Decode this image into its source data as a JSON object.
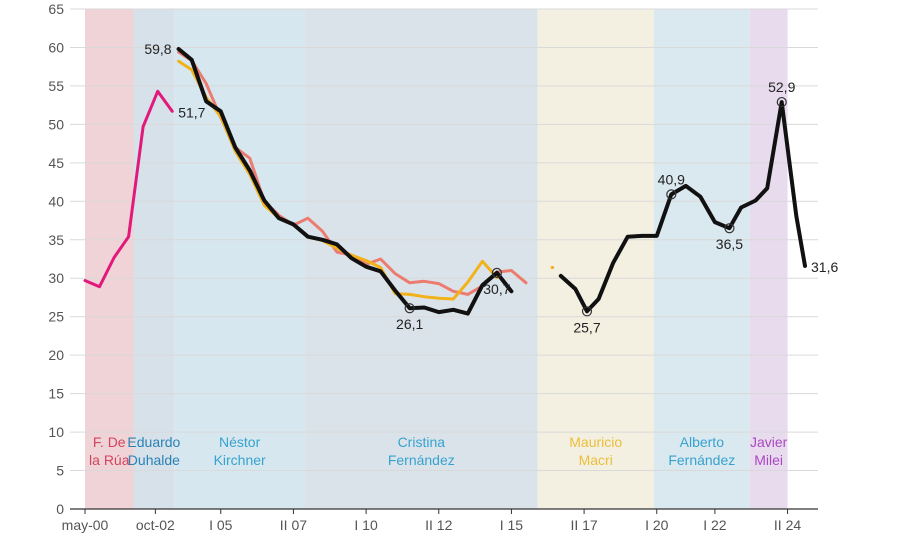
{
  "chart_data": {
    "type": "line",
    "title": "",
    "xlabel": "",
    "ylabel": "",
    "ylim": [
      0,
      65
    ],
    "yticks": [
      0,
      5,
      10,
      15,
      20,
      25,
      30,
      35,
      40,
      45,
      50,
      55,
      60,
      65
    ],
    "xlim": [
      2000.33,
      2025.1
    ],
    "grid": true,
    "xtick_labels": [
      {
        "label": "may-00",
        "x": 2000.33
      },
      {
        "label": "oct-02",
        "x": 2002.75
      },
      {
        "label": "I 05",
        "x": 2005.0
      },
      {
        "label": "II 07",
        "x": 2007.5
      },
      {
        "label": "I 10",
        "x": 2010.0
      },
      {
        "label": "II 12",
        "x": 2012.5
      },
      {
        "label": "I 15",
        "x": 2015.0
      },
      {
        "label": "II 17",
        "x": 2017.5
      },
      {
        "label": "I 20",
        "x": 2020.0
      },
      {
        "label": "I 22",
        "x": 2022.0
      },
      {
        "label": "II 24",
        "x": 2024.5
      }
    ],
    "periods": [
      {
        "name": "F. De la Rúa",
        "lines": [
          "F. De",
          "la Rúa"
        ],
        "start": 2000.33,
        "end": 2002.0,
        "fill": "#efd3d6",
        "text_color": "#d2455e"
      },
      {
        "name": "Eduardo Duhalde",
        "lines": [
          "Eduardo",
          "Duhalde"
        ],
        "start": 2002.0,
        "end": 2003.4,
        "fill": "#d6e1ea",
        "text_color": "#2a82b5"
      },
      {
        "name": "Néstor Kirchner",
        "lines": [
          "Néstor",
          "Kirchner"
        ],
        "start": 2003.4,
        "end": 2007.9,
        "fill": "#d7e7ef",
        "text_color": "#36a3cf"
      },
      {
        "name": "Cristina Fernández",
        "lines": [
          "Cristina",
          "Fernández"
        ],
        "start": 2007.9,
        "end": 2015.9,
        "fill": "#dbe3ea",
        "text_color": "#36a3cf"
      },
      {
        "name": "Mauricio Macri",
        "lines": [
          "Mauricio",
          "Macri"
        ],
        "start": 2015.9,
        "end": 2019.9,
        "fill": "#f3f0e2",
        "text_color": "#ecbe3a"
      },
      {
        "name": "Alberto Fernández",
        "lines": [
          "Alberto",
          "Fernández"
        ],
        "start": 2019.9,
        "end": 2023.2,
        "fill": "#dae8ef",
        "text_color": "#36a3cf"
      },
      {
        "name": "Javier Milei",
        "lines": [
          "Javier",
          "Milei"
        ],
        "start": 2023.2,
        "end": 2024.5,
        "fill": "#e8dbee",
        "text_color": "#a849c2"
      }
    ],
    "series": [
      {
        "name": "magenta",
        "color": "#e2187b",
        "width": 3,
        "points": [
          [
            2000.33,
            29.7
          ],
          [
            2000.83,
            28.9
          ],
          [
            2001.33,
            32.7
          ],
          [
            2001.83,
            35.4
          ],
          [
            2002.33,
            49.7
          ],
          [
            2002.83,
            54.3
          ],
          [
            2003.33,
            51.7
          ]
        ]
      },
      {
        "name": "salmon",
        "color": "#ec7c70",
        "width": 3,
        "points": [
          [
            2003.55,
            59.4
          ],
          [
            2004.0,
            58.3
          ],
          [
            2004.5,
            55.3
          ],
          [
            2005.0,
            50.9
          ],
          [
            2005.5,
            47.0
          ],
          [
            2006.0,
            45.6
          ],
          [
            2006.5,
            40.0
          ],
          [
            2007.0,
            38.2
          ],
          [
            2007.5,
            36.9
          ],
          [
            2008.0,
            37.8
          ],
          [
            2008.5,
            36.1
          ],
          [
            2009.0,
            33.4
          ],
          [
            2009.5,
            33.0
          ],
          [
            2010.0,
            31.8
          ],
          [
            2010.5,
            32.5
          ],
          [
            2011.0,
            30.6
          ],
          [
            2011.5,
            29.4
          ],
          [
            2012.0,
            29.6
          ],
          [
            2012.5,
            29.3
          ],
          [
            2013.0,
            28.3
          ],
          [
            2013.5,
            27.9
          ],
          [
            2014.0,
            29.0
          ],
          [
            2014.5,
            30.8
          ],
          [
            2015.0,
            31.0
          ],
          [
            2015.5,
            29.4
          ]
        ]
      },
      {
        "name": "yellow",
        "color": "#f2b21b",
        "width": 3,
        "points": [
          [
            2003.55,
            58.2
          ],
          [
            2004.0,
            57.1
          ],
          [
            2004.5,
            53.5
          ],
          [
            2005.0,
            51.0
          ],
          [
            2005.5,
            46.5
          ],
          [
            2006.0,
            43.5
          ],
          [
            2006.5,
            39.5
          ],
          [
            2007.0,
            37.8
          ],
          [
            2007.5,
            37.0
          ],
          [
            2008.0,
            35.4
          ],
          [
            2008.5,
            34.9
          ],
          [
            2009.0,
            33.9
          ],
          [
            2009.5,
            33.0
          ],
          [
            2010.0,
            32.3
          ],
          [
            2010.5,
            31.4
          ],
          [
            2011.0,
            28.0
          ],
          [
            2011.5,
            27.9
          ],
          [
            2012.0,
            27.6
          ],
          [
            2012.5,
            27.4
          ],
          [
            2013.0,
            27.3
          ],
          [
            2013.5,
            29.5
          ],
          [
            2014.0,
            32.2
          ],
          [
            2014.5,
            30.1
          ]
        ]
      },
      {
        "name": "yellow-dot",
        "color": "#f2b21b",
        "width": 3,
        "points": [
          [
            2016.4,
            31.4
          ],
          [
            2016.42,
            31.4
          ]
        ]
      },
      {
        "name": "black",
        "color": "#111111",
        "width": 4,
        "points": [
          [
            2003.55,
            59.8
          ],
          [
            2004.0,
            58.4
          ],
          [
            2004.5,
            53.0
          ],
          [
            2005.0,
            51.7
          ],
          [
            2005.5,
            47.0
          ],
          [
            2006.0,
            44.0
          ],
          [
            2006.5,
            40.1
          ],
          [
            2007.0,
            37.8
          ],
          [
            2007.5,
            37.0
          ],
          [
            2008.0,
            35.4
          ],
          [
            2008.5,
            35.0
          ],
          [
            2009.0,
            34.4
          ],
          [
            2009.5,
            32.6
          ],
          [
            2010.0,
            31.5
          ],
          [
            2010.5,
            30.9
          ],
          [
            2011.0,
            28.4
          ],
          [
            2011.5,
            26.1
          ],
          [
            2012.0,
            26.2
          ],
          [
            2012.5,
            25.6
          ],
          [
            2013.0,
            25.9
          ],
          [
            2013.5,
            25.4
          ],
          [
            2014.0,
            29.1
          ],
          [
            2014.5,
            30.7
          ],
          [
            2015.0,
            28.3
          ]
        ]
      },
      {
        "name": "black-2",
        "color": "#111111",
        "width": 4,
        "points": [
          [
            2016.7,
            30.3
          ],
          [
            2017.2,
            28.6
          ],
          [
            2017.6,
            25.7
          ],
          [
            2018.0,
            27.3
          ],
          [
            2018.5,
            32.0
          ],
          [
            2019.0,
            35.4
          ],
          [
            2019.5,
            35.5
          ],
          [
            2020.0,
            35.5
          ],
          [
            2020.5,
            40.9
          ],
          [
            2021.0,
            42.0
          ],
          [
            2021.5,
            40.6
          ],
          [
            2022.0,
            37.3
          ],
          [
            2022.5,
            36.5
          ],
          [
            2022.9,
            39.2
          ],
          [
            2023.4,
            40.1
          ],
          [
            2023.8,
            41.7
          ],
          [
            2024.3,
            52.9
          ],
          [
            2024.8,
            38.1
          ],
          [
            2025.1,
            31.6
          ]
        ]
      }
    ],
    "annotations": [
      {
        "label": "59,8",
        "x": 2003.55,
        "y": 59.8,
        "pos": "left",
        "marker": false
      },
      {
        "label": "51,7",
        "x": 2003.33,
        "y": 51.7,
        "pos": "right",
        "marker": false
      },
      {
        "label": "26,1",
        "x": 2011.5,
        "y": 26.1,
        "pos": "below",
        "marker": true
      },
      {
        "label": "30,7",
        "x": 2014.5,
        "y": 30.7,
        "pos": "below",
        "marker": true
      },
      {
        "label": "25,7",
        "x": 2017.6,
        "y": 25.7,
        "pos": "below",
        "marker": true
      },
      {
        "label": "40,9",
        "x": 2020.5,
        "y": 40.9,
        "pos": "above",
        "marker": true
      },
      {
        "label": "36,5",
        "x": 2022.5,
        "y": 36.5,
        "pos": "below",
        "marker": true
      },
      {
        "label": "52,9",
        "x": 2024.3,
        "y": 52.9,
        "pos": "above",
        "marker": true
      },
      {
        "label": "31,6",
        "x": 2025.1,
        "y": 31.6,
        "pos": "right",
        "marker": false
      }
    ]
  }
}
